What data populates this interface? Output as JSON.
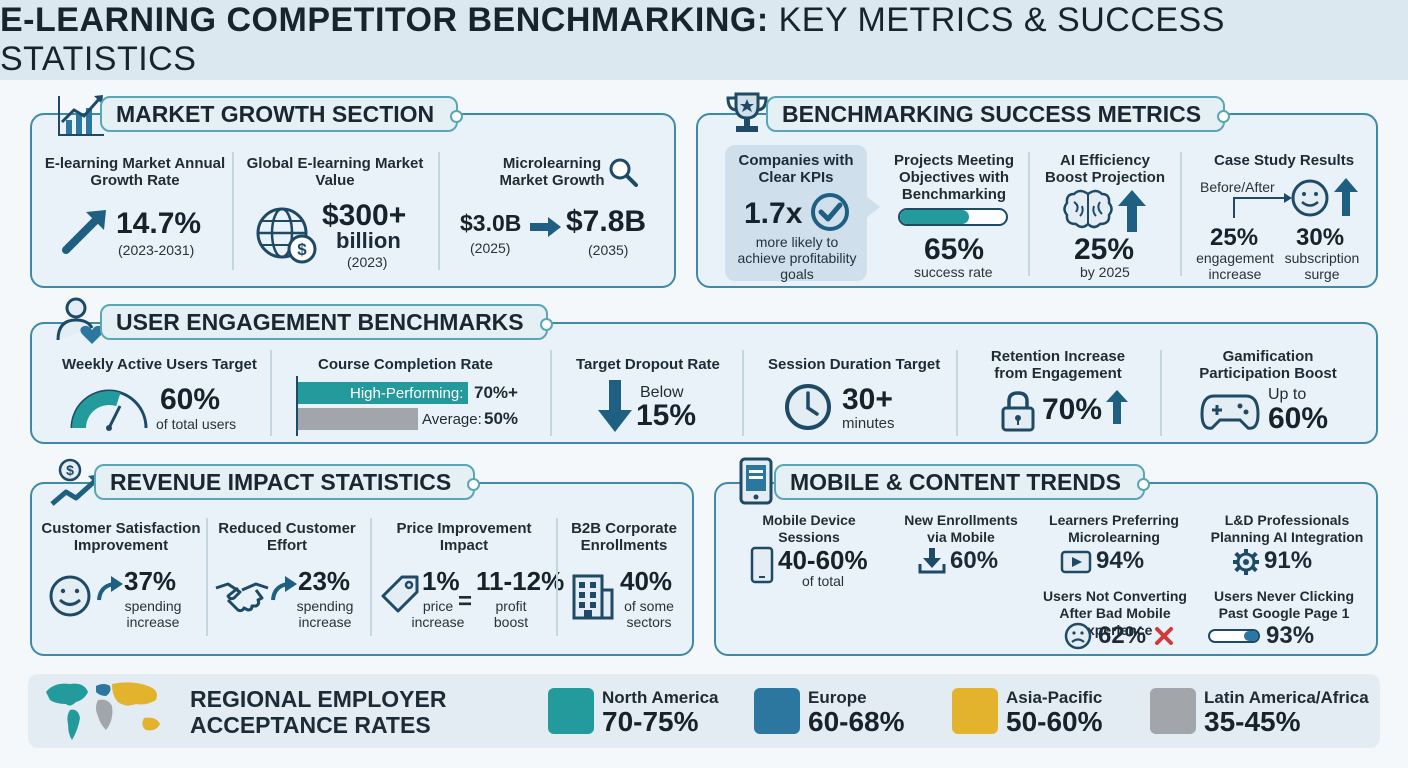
{
  "title": {
    "bold": "E-LEARNING COMPETITOR BENCHMARKING:",
    "light": "KEY METRICS & SUCCESS STATISTICS"
  },
  "market": {
    "header": "MARKET GROWTH SECTION",
    "growth_label": "E-learning Market Annual Growth Rate",
    "growth_value": "14.7%",
    "growth_period": "(2023-2031)",
    "value_label": "Global E-learning Market Value",
    "value_amount": "$300+",
    "value_unit": "billion",
    "value_year": "(2023)",
    "micro_label": "Microlearning Market Growth",
    "micro_from": "$3.0B",
    "micro_from_year": "(2025)",
    "micro_to": "$7.8B",
    "micro_to_year": "(2035)"
  },
  "bench": {
    "header": "BENCHMARKING SUCCESS METRICS",
    "kpi_label": "Companies with Clear KPIs",
    "kpi_value": "1.7x",
    "kpi_desc": "more likely to achieve profitability goals",
    "proj_label": "Projects Meeting Objectives with Benchmarking",
    "proj_value": "65%",
    "proj_progress": 0.65,
    "proj_desc": "success rate",
    "ai_label": "AI Efficiency Boost Projection",
    "ai_value": "25%",
    "ai_desc": "by 2025",
    "case_label": "Case Study Results",
    "case_before_after": "Before/After",
    "case_v1": "25%",
    "case_d1": "engagement increase",
    "case_v2": "30%",
    "case_d2": "subscription surge"
  },
  "engage": {
    "header": "USER ENGAGEMENT BENCHMARKS",
    "wau_label": "Weekly Active Users Target",
    "wau_value": "60%",
    "wau_desc": "of total users",
    "wau_level": 0.6,
    "comp_label": "Course Completion Rate",
    "comp_high_label": "High-Performing:",
    "comp_high_value": "70%+",
    "comp_avg_label": "Average:",
    "comp_avg_value": "50%",
    "drop_label": "Target Dropout Rate",
    "drop_prefix": "Below",
    "drop_value": "15%",
    "sess_label": "Session Duration Target",
    "sess_value": "30+",
    "sess_unit": "minutes",
    "ret_label": "Retention Increase from Engagement",
    "ret_value": "70%",
    "gam_label": "Gamification Participation Boost",
    "gam_prefix": "Up to",
    "gam_value": "60%"
  },
  "revenue": {
    "header": "REVENUE IMPACT STATISTICS",
    "cs_label": "Customer Satisfaction Improvement",
    "cs_value": "37%",
    "cs_desc": "spending increase",
    "rce_label": "Reduced Customer Effort",
    "rce_value": "23%",
    "rce_desc": "spending increase",
    "pi_label": "Price Improvement Impact",
    "pi_value1": "1%",
    "pi_desc1": "price increase",
    "pi_eq": "=",
    "pi_value2": "11-12%",
    "pi_desc2": "profit boost",
    "b2b_label": "B2B Corporate Enrollments",
    "b2b_value": "40%",
    "b2b_desc": "of some sectors"
  },
  "mobile": {
    "header": "MOBILE & CONTENT TRENDS",
    "mds_label": "Mobile Device Sessions",
    "mds_value": "40-60%",
    "mds_desc": "of total",
    "ne_label": "New Enrollments via Mobile",
    "ne_value": "60%",
    "lpm_label": "Learners Preferring Microlearning",
    "lpm_value": "94%",
    "ld_label": "L&D Professionals Planning AI Integration",
    "ld_value": "91%",
    "unc_label": "Users Not Converting After Bad Mobile Experience",
    "unc_value": "62%",
    "unp_label": "Users Never Clicking Past Google Page 1",
    "unp_value": "93%"
  },
  "regional": {
    "header": "REGIONAL EMPLOYER ACCEPTANCE RATES",
    "regions": [
      {
        "name": "North America",
        "value": "70-75%",
        "color": "#239a9c"
      },
      {
        "name": "Europe",
        "value": "60-68%",
        "color": "#2b77a0"
      },
      {
        "name": "Asia-Pacific",
        "value": "50-60%",
        "color": "#e3b32e"
      },
      {
        "name": "Latin America/Africa",
        "value": "35-45%",
        "color": "#a2a6aa"
      }
    ]
  },
  "colors": {
    "teal": "#239a9c",
    "navy": "#1e4a66",
    "border": "#3f8aa8"
  }
}
